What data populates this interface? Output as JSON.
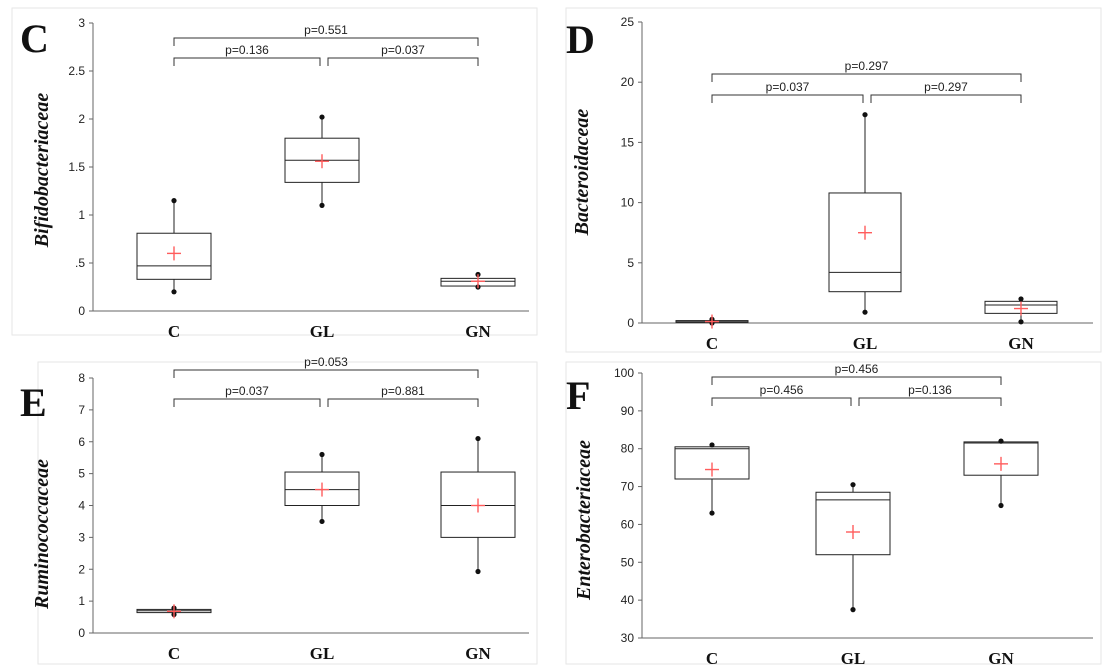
{
  "chart_data": [
    {
      "type": "box",
      "panel_label": "C",
      "ylabel": "Bifidobacteriaceae",
      "ylim": [
        0,
        3
      ],
      "yticks": [
        "0",
        ".5",
        "1",
        "1.5",
        "2",
        "2.5",
        "3"
      ],
      "categories": [
        "C",
        "GL",
        "GN"
      ],
      "boxes": [
        {
          "min": 0.2,
          "q1": 0.33,
          "median": 0.47,
          "q3": 0.81,
          "max": 1.15,
          "mean": 0.6
        },
        {
          "min": 1.1,
          "q1": 1.34,
          "median": 1.57,
          "q3": 1.8,
          "max": 2.02,
          "mean": 1.56
        },
        {
          "min": 0.25,
          "q1": 0.26,
          "median": 0.31,
          "q3": 0.34,
          "max": 0.38,
          "mean": 0.31
        }
      ],
      "comparisons": [
        {
          "pair": [
            "C",
            "GN"
          ],
          "label": "p=0.551"
        },
        {
          "pair": [
            "C",
            "GL"
          ],
          "label": "p=0.136"
        },
        {
          "pair": [
            "GL",
            "GN"
          ],
          "label": "p=0.037"
        }
      ]
    },
    {
      "type": "box",
      "panel_label": "D",
      "ylabel": "Bacteroidaceae",
      "ylim": [
        0,
        25
      ],
      "yticks": [
        "0",
        "5",
        "10",
        "15",
        "20",
        "25"
      ],
      "categories": [
        "C",
        "GL",
        "GN"
      ],
      "boxes": [
        {
          "min": 0.0,
          "q1": 0.05,
          "median": 0.1,
          "q3": 0.2,
          "max": 0.3,
          "mean": 0.12
        },
        {
          "min": 0.9,
          "q1": 2.6,
          "median": 4.2,
          "q3": 10.8,
          "max": 17.3,
          "mean": 7.5
        },
        {
          "min": 0.1,
          "q1": 0.8,
          "median": 1.5,
          "q3": 1.8,
          "max": 2.0,
          "mean": 1.2
        }
      ],
      "comparisons": [
        {
          "pair": [
            "C",
            "GN"
          ],
          "label": "p=0.297"
        },
        {
          "pair": [
            "C",
            "GL"
          ],
          "label": "p=0.037"
        },
        {
          "pair": [
            "GL",
            "GN"
          ],
          "label": "p=0.297"
        }
      ]
    },
    {
      "type": "box",
      "panel_label": "E",
      "ylabel": "Ruminococcaceae",
      "ylim": [
        0,
        8
      ],
      "yticks": [
        "0",
        "1",
        "2",
        "3",
        "4",
        "5",
        "6",
        "7",
        "8"
      ],
      "categories": [
        "C",
        "GL",
        "GN"
      ],
      "boxes": [
        {
          "min": 0.58,
          "q1": 0.64,
          "median": 0.7,
          "q3": 0.74,
          "max": 0.78,
          "mean": 0.68
        },
        {
          "min": 3.5,
          "q1": 4.0,
          "median": 4.5,
          "q3": 5.05,
          "max": 5.6,
          "mean": 4.5
        },
        {
          "min": 1.93,
          "q1": 3.0,
          "median": 4.0,
          "q3": 5.05,
          "max": 6.1,
          "mean": 4.0
        }
      ],
      "comparisons": [
        {
          "pair": [
            "C",
            "GN"
          ],
          "label": "p=0.053"
        },
        {
          "pair": [
            "C",
            "GL"
          ],
          "label": "p=0.037"
        },
        {
          "pair": [
            "GL",
            "GN"
          ],
          "label": "p=0.881"
        }
      ]
    },
    {
      "type": "box",
      "panel_label": "F",
      "ylabel": "Enterobacteriaceae",
      "ylim": [
        30,
        100
      ],
      "yticks": [
        "30",
        "40",
        "50",
        "60",
        "70",
        "80",
        "90",
        "100"
      ],
      "categories": [
        "C",
        "GL",
        "GN"
      ],
      "boxes": [
        {
          "min": 63,
          "q1": 72,
          "median": 80,
          "q3": 80.5,
          "max": 81,
          "mean": 74.5
        },
        {
          "min": 37.5,
          "q1": 52,
          "median": 66.5,
          "q3": 68.5,
          "max": 70.5,
          "mean": 58
        },
        {
          "min": 65,
          "q1": 73,
          "median": 81.5,
          "q3": 81.8,
          "max": 82,
          "mean": 76
        }
      ],
      "comparisons": [
        {
          "pair": [
            "C",
            "GN"
          ],
          "label": "p=0.456"
        },
        {
          "pair": [
            "C",
            "GL"
          ],
          "label": "p=0.456"
        },
        {
          "pair": [
            "GL",
            "GN"
          ],
          "label": "p=0.136"
        }
      ]
    }
  ]
}
